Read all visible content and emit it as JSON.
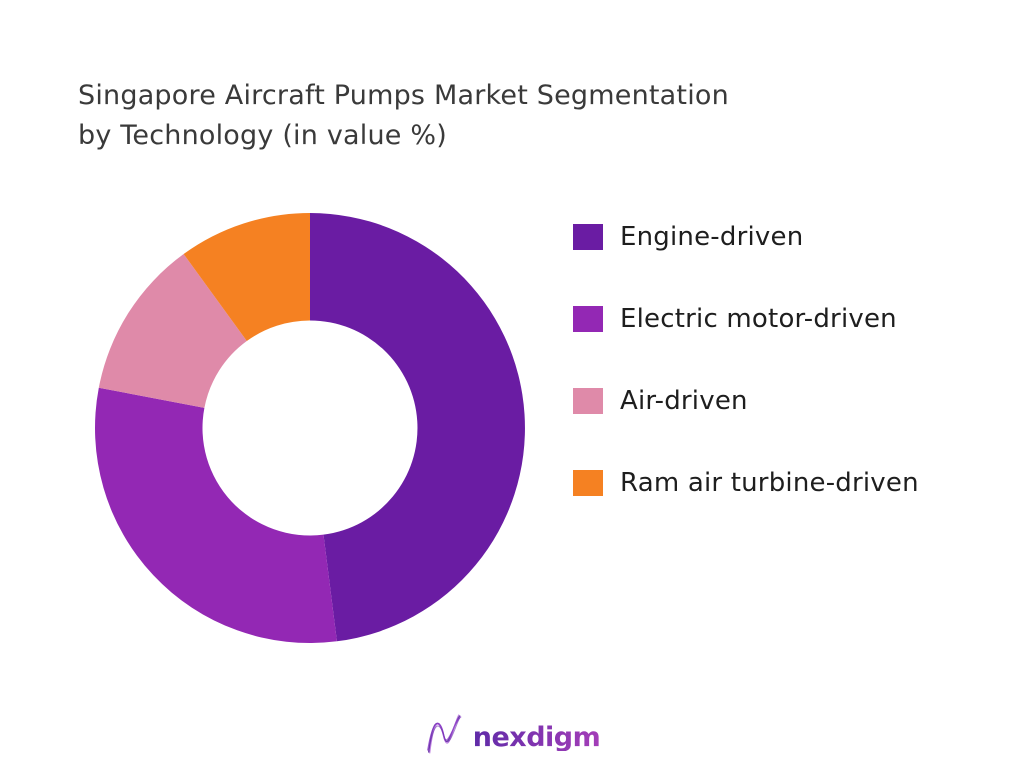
{
  "title": {
    "line1": "Singapore Aircraft Pumps Market Segmentation",
    "line2": "by Technology (in value %)",
    "color": "#3a3a3a"
  },
  "chart_data": {
    "type": "pie",
    "subtype": "donut",
    "title": "Singapore Aircraft Pumps Market Segmentation by Technology (in value %)",
    "unit": "%",
    "categories": [
      "Engine-driven",
      "Electric motor-driven",
      "Air-driven",
      "Ram air turbine-driven"
    ],
    "values": [
      48,
      30,
      12,
      10
    ],
    "colors": [
      "#6a1ca3",
      "#9328b4",
      "#df8aa9",
      "#f58122"
    ],
    "start_angle_deg": 0,
    "direction": "clockwise",
    "inner_radius_ratio": 0.5,
    "legend_position": "right",
    "data_labels": "none"
  },
  "legend": {
    "items": [
      {
        "label": "Engine-driven",
        "color": "#6a1ca3"
      },
      {
        "label": "Electric motor-driven",
        "color": "#9328b4"
      },
      {
        "label": "Air-driven",
        "color": "#df8aa9"
      },
      {
        "label": "Ram air turbine-driven",
        "color": "#f58122"
      }
    ]
  },
  "footer": {
    "brand": "nexdigm",
    "brand_color_start": "#5f2ba8",
    "brand_color_end": "#a43eb8"
  }
}
